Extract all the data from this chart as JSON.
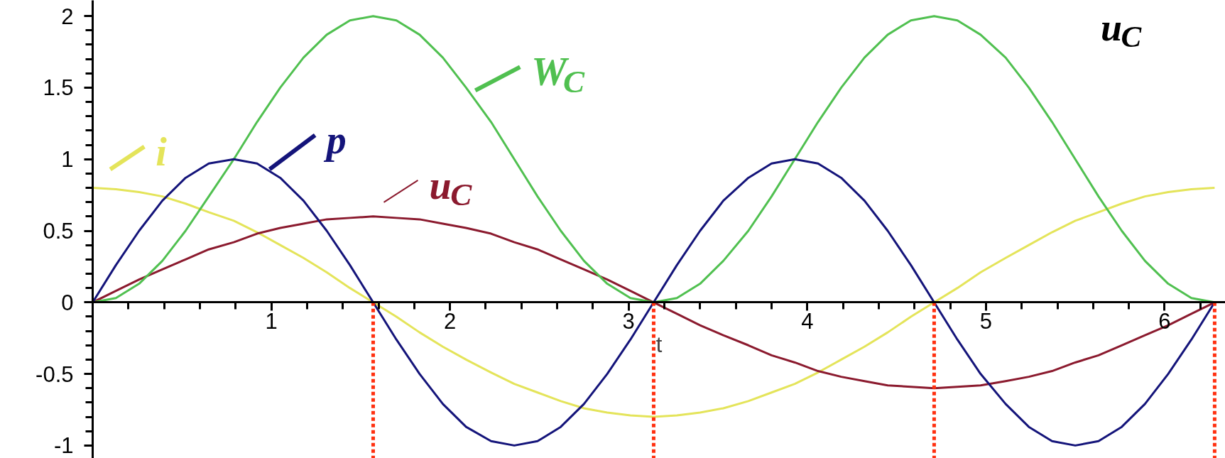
{
  "chart_data": {
    "type": "line",
    "title": "u$_{C}$",
    "xlabel": "t",
    "x": [
      0,
      0.13,
      0.26,
      0.39,
      0.52,
      0.65,
      0.79,
      0.92,
      1.05,
      1.18,
      1.31,
      1.44,
      1.57,
      1.7,
      1.83,
      1.96,
      2.09,
      2.23,
      2.36,
      2.49,
      2.62,
      2.75,
      2.88,
      3.01,
      3.14,
      3.27,
      3.4,
      3.53,
      3.67,
      3.8,
      3.93,
      4.06,
      4.19,
      4.32,
      4.45,
      4.58,
      4.71,
      4.84,
      4.97,
      5.11,
      5.24,
      5.37,
      5.5,
      5.63,
      5.76,
      5.89,
      6.02,
      6.15,
      6.28
    ],
    "series": [
      {
        "name": "i",
        "color": "#e4e45a",
        "values": [
          0.8,
          0.79,
          0.77,
          0.74,
          0.69,
          0.63,
          0.57,
          0.49,
          0.4,
          0.31,
          0.21,
          0.1,
          0,
          -0.1,
          -0.21,
          -0.31,
          -0.4,
          -0.49,
          -0.57,
          -0.63,
          -0.69,
          -0.74,
          -0.77,
          -0.79,
          -0.8,
          -0.79,
          -0.77,
          -0.74,
          -0.69,
          -0.63,
          -0.57,
          -0.49,
          -0.4,
          -0.31,
          -0.21,
          -0.1,
          0,
          0.1,
          0.21,
          0.31,
          0.4,
          0.49,
          0.57,
          0.63,
          0.69,
          0.74,
          0.77,
          0.79,
          0.8
        ]
      },
      {
        "name": "u$_{C}$",
        "color": "#8b1a2e",
        "values": [
          0,
          0.08,
          0.16,
          0.23,
          0.3,
          0.37,
          0.42,
          0.48,
          0.52,
          0.55,
          0.58,
          0.59,
          0.6,
          0.59,
          0.58,
          0.55,
          0.52,
          0.48,
          0.42,
          0.37,
          0.3,
          0.23,
          0.16,
          0.08,
          0,
          -0.08,
          -0.16,
          -0.23,
          -0.3,
          -0.37,
          -0.42,
          -0.48,
          -0.52,
          -0.55,
          -0.58,
          -0.59,
          -0.6,
          -0.59,
          -0.58,
          -0.55,
          -0.52,
          -0.48,
          -0.42,
          -0.37,
          -0.3,
          -0.23,
          -0.16,
          -0.08,
          0
        ]
      },
      {
        "name": "W$_{C}$",
        "color": "#50c050",
        "values": [
          0,
          0.03,
          0.13,
          0.29,
          0.5,
          0.74,
          1,
          1.26,
          1.5,
          1.71,
          1.87,
          1.97,
          2,
          1.97,
          1.87,
          1.71,
          1.5,
          1.26,
          1,
          0.74,
          0.5,
          0.29,
          0.13,
          0.03,
          0,
          0.03,
          0.13,
          0.29,
          0.5,
          0.74,
          1,
          1.26,
          1.5,
          1.71,
          1.87,
          1.97,
          2,
          1.97,
          1.87,
          1.71,
          1.5,
          1.26,
          1,
          0.74,
          0.5,
          0.29,
          0.13,
          0.03,
          0
        ]
      },
      {
        "name": "p",
        "color": "#14147a",
        "values": [
          0,
          0.26,
          0.5,
          0.71,
          0.87,
          0.97,
          1,
          0.97,
          0.87,
          0.71,
          0.5,
          0.26,
          0,
          -0.26,
          -0.5,
          -0.71,
          -0.87,
          -0.97,
          -1,
          -0.97,
          -0.87,
          -0.71,
          -0.5,
          -0.26,
          0,
          0.26,
          0.5,
          0.71,
          0.87,
          0.97,
          1,
          0.97,
          0.87,
          0.71,
          0.5,
          0.26,
          0,
          -0.26,
          -0.5,
          -0.71,
          -0.87,
          -0.97,
          -1,
          -0.97,
          -0.87,
          -0.71,
          -0.5,
          -0.26,
          0
        ]
      }
    ],
    "xlim": [
      0,
      6.34
    ],
    "ylim": [
      -1.09,
      2.11
    ],
    "xticks": [
      {
        "value": 0.2,
        "label": null
      },
      {
        "value": 0.4,
        "label": null
      },
      {
        "value": 0.6,
        "label": null
      },
      {
        "value": 0.8,
        "label": null
      },
      1,
      {
        "value": 1.2,
        "label": null
      },
      {
        "value": 1.4,
        "label": null
      },
      {
        "value": 1.6,
        "label": null
      },
      {
        "value": 1.8,
        "label": null
      },
      2,
      {
        "value": 2.2,
        "label": null
      },
      {
        "value": 2.4,
        "label": null
      },
      {
        "value": 2.6,
        "label": null
      },
      {
        "value": 2.8,
        "label": null
      },
      3,
      {
        "value": 3.2,
        "label": null
      },
      {
        "value": 3.4,
        "label": null
      },
      {
        "value": 3.6,
        "label": null
      },
      {
        "value": 3.8,
        "label": null
      },
      4,
      {
        "value": 4.2,
        "label": null
      },
      {
        "value": 4.4,
        "label": null
      },
      {
        "value": 4.6,
        "label": null
      },
      {
        "value": 4.8,
        "label": null
      },
      5,
      {
        "value": 5.2,
        "label": null
      },
      {
        "value": 5.4,
        "label": null
      },
      {
        "value": 5.6,
        "label": null
      },
      {
        "value": 5.8,
        "label": null
      },
      6,
      {
        "value": 6.2,
        "label": null
      }
    ],
    "yticks": [
      -1,
      {
        "value": -0.9,
        "label": null
      },
      {
        "value": -0.8,
        "label": null
      },
      {
        "value": -0.7,
        "label": null
      },
      {
        "value": -0.6,
        "label": null
      },
      -0.5,
      {
        "value": -0.4,
        "label": null
      },
      {
        "value": -0.3,
        "label": null
      },
      {
        "value": -0.2,
        "label": null
      },
      {
        "value": -0.1,
        "label": null
      },
      0,
      {
        "value": 0.1,
        "label": null
      },
      {
        "value": 0.2,
        "label": null
      },
      {
        "value": 0.3,
        "label": null
      },
      {
        "value": 0.4,
        "label": null
      },
      0.5,
      {
        "value": 0.6,
        "label": null
      },
      {
        "value": 0.7,
        "label": null
      },
      {
        "value": 0.8,
        "label": null
      },
      {
        "value": 0.9,
        "label": null
      },
      1,
      {
        "value": 1.1,
        "label": null
      },
      {
        "value": 1.2,
        "label": null
      },
      {
        "value": 1.3,
        "label": null
      },
      {
        "value": 1.4,
        "label": null
      },
      1.5,
      {
        "value": 1.6,
        "label": null
      },
      {
        "value": 1.7,
        "label": null
      },
      {
        "value": 1.8,
        "label": null
      },
      {
        "value": 1.9,
        "label": null
      },
      2
    ],
    "ref_lines": [
      {
        "axis": "x",
        "value": 1.57,
        "color": "#ff3010",
        "line_style": "dotted"
      },
      {
        "axis": "x",
        "value": 3.14,
        "color": "#ff3010",
        "line_style": "dotted"
      },
      {
        "axis": "x",
        "value": 4.71,
        "color": "#ff3010",
        "line_style": "dotted"
      },
      {
        "axis": "x",
        "value": 6.28,
        "color": "#ff3010",
        "line_style": "dotted"
      }
    ],
    "legend": "top left",
    "grid": false,
    "line_style": "solid"
  }
}
